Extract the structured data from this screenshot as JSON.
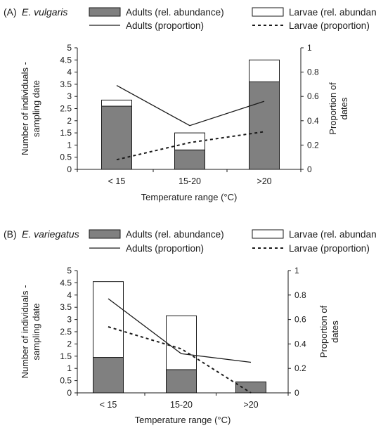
{
  "legend": {
    "adults_abundance": "Adults (rel. abundance)",
    "adults_proportion": "Adults (proportion)",
    "larvae_proportion": "Larvae (proportion)"
  },
  "colors": {
    "adults_bar": "#808080",
    "larvae_bar": "#ffffff",
    "ink": "#1a1a1a"
  },
  "chart_data": [
    {
      "type": "bar",
      "panel_label": "(A)",
      "species": "E. vulgaris",
      "larvae_abundance_label": "Larvae (rel. abundance)",
      "categories": [
        "< 15",
        "15-20",
        ">20"
      ],
      "series": [
        {
          "name": "Adults (rel. abundance)",
          "kind": "stacked-bar",
          "values": [
            2.6,
            0.8,
            3.6
          ]
        },
        {
          "name": "Larvae (rel. abundance)",
          "kind": "stacked-bar",
          "values": [
            0.25,
            0.7,
            0.9
          ]
        },
        {
          "name": "Adults (proportion)",
          "kind": "line",
          "axis": "right",
          "values": [
            0.69,
            0.36,
            0.56
          ]
        },
        {
          "name": "Larvae (proportion)",
          "kind": "dashed-line",
          "axis": "right",
          "values": [
            0.08,
            0.22,
            0.31
          ]
        }
      ],
      "xlabel": "Temperature range (°C)",
      "ylabel_lines": [
        "Number of individuals -",
        "sampling date"
      ],
      "y2label_lines": [
        "Proportion of",
        "dates"
      ],
      "ylim": [
        0,
        5
      ],
      "y2lim": [
        0,
        1
      ],
      "yticks": [
        "0",
        "0.5",
        "1",
        "1.5",
        "2",
        "2.5",
        "3",
        "3.5",
        "4",
        "4.5",
        "5"
      ],
      "y2ticks": [
        "0",
        "0.2",
        "0.4",
        "0.6",
        "0.8",
        "1"
      ]
    },
    {
      "type": "bar",
      "panel_label": "(B)",
      "species": "E. variegatus",
      "larvae_abundance_label": "Larvae (rel. abundance",
      "categories": [
        "< 15",
        "15-20",
        ">20"
      ],
      "series": [
        {
          "name": "Adults (rel. abundance)",
          "kind": "stacked-bar",
          "values": [
            1.45,
            0.95,
            0.45
          ]
        },
        {
          "name": "Larvae (rel. abundance",
          "kind": "stacked-bar",
          "values": [
            3.1,
            2.2,
            0
          ]
        },
        {
          "name": "Adults (proportion)",
          "kind": "line",
          "axis": "right",
          "values": [
            0.77,
            0.32,
            0.25
          ]
        },
        {
          "name": "Larvae (proportion)",
          "kind": "dashed-line",
          "axis": "right",
          "values": [
            0.54,
            0.36,
            0.0
          ]
        }
      ],
      "xlabel": "Temperature range (°C)",
      "ylabel_lines": [
        "Number of individuals -",
        "sampling date"
      ],
      "y2label_lines": [
        "Proportion of",
        "dates"
      ],
      "ylim": [
        0,
        5
      ],
      "y2lim": [
        0,
        1
      ],
      "yticks": [
        "0",
        "0.5",
        "1",
        "1.5",
        "2",
        "2.5",
        "3",
        "3.5",
        "4",
        "4.5",
        "5"
      ],
      "y2ticks": [
        "0",
        "0.2",
        "0.4",
        "0.6",
        "0.8",
        "1"
      ]
    }
  ]
}
